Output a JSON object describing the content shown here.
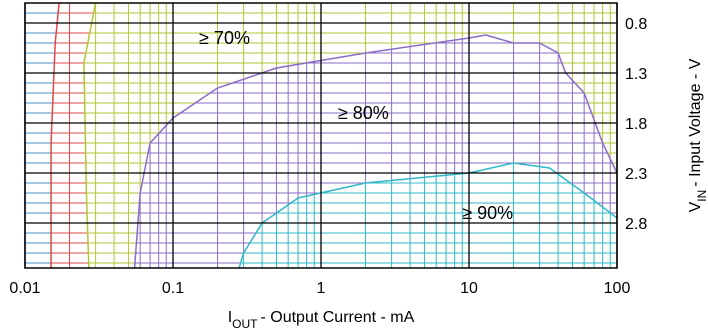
{
  "chart_data": {
    "type": "contour",
    "x_label": [
      "I",
      "OUT",
      "- Output Current - mA"
    ],
    "y_label": [
      "V",
      "IN",
      "- Input Voltage - V"
    ],
    "x_log": true,
    "xlim": [
      0.01,
      100
    ],
    "xticks": [
      0.01,
      0.1,
      1,
      10,
      100
    ],
    "ylim": [
      0.6,
      3.25
    ],
    "y_inverted": true,
    "yticks": [
      0.8,
      1.3,
      1.8,
      2.3,
      2.8
    ],
    "background_color": "#4a90c8",
    "contours": [
      {
        "color": "#e04848",
        "x": [
          0.017,
          0.016,
          0.015,
          0.015
        ],
        "y": [
          0.6,
          1.0,
          2.0,
          3.25
        ]
      },
      {
        "color": "#b3c634",
        "x": [
          0.03,
          0.025,
          0.026,
          0.027
        ],
        "y": [
          0.6,
          1.2,
          2.5,
          3.25
        ]
      },
      {
        "color": "#8a6cc8",
        "x": [
          0.055,
          0.06,
          0.07,
          0.1,
          0.2,
          0.5,
          2,
          10,
          13,
          20,
          30,
          40,
          45,
          60,
          80,
          100
        ],
        "y": [
          3.25,
          2.5,
          2.0,
          1.75,
          1.45,
          1.25,
          1.1,
          0.95,
          0.92,
          1.0,
          1.0,
          1.1,
          1.3,
          1.5,
          2.0,
          2.3
        ]
      },
      {
        "color": "#30b8c8",
        "x": [
          0.28,
          0.3,
          0.4,
          0.7,
          2,
          10,
          20,
          35,
          60,
          100
        ],
        "y": [
          3.25,
          3.1,
          2.8,
          2.55,
          2.4,
          2.3,
          2.2,
          2.25,
          2.5,
          2.75
        ]
      }
    ],
    "annotations": [
      {
        "text": "≥ 70%",
        "x": 0.15,
        "y": 0.95
      },
      {
        "text": "≥ 80%",
        "x": 1.3,
        "y": 1.7
      },
      {
        "text": "≥ 90%",
        "x": 9,
        "y": 2.7
      }
    ]
  }
}
